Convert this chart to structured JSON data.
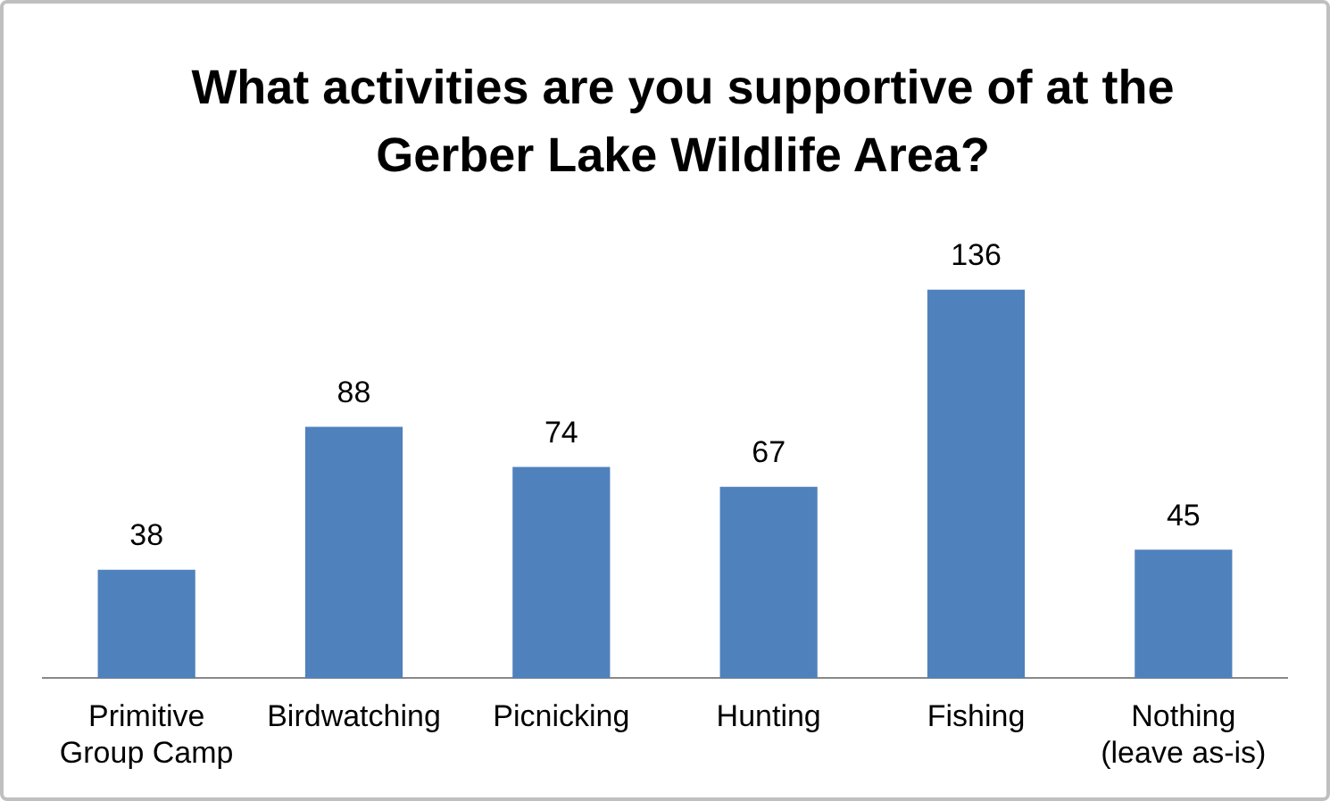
{
  "chart_data": {
    "type": "bar",
    "title": "What activities are you supportive of at the Gerber Lake Wildlife Area?",
    "categories": [
      "Primitive Group Camp",
      "Birdwatching",
      "Picnicking",
      "Hunting",
      "Fishing",
      "Nothing (leave as-is)"
    ],
    "values": [
      38,
      88,
      74,
      67,
      136,
      45
    ],
    "color": "#4f81bd",
    "tick_labels": "x",
    "data_labels": true,
    "grid": false,
    "legend": false
  }
}
